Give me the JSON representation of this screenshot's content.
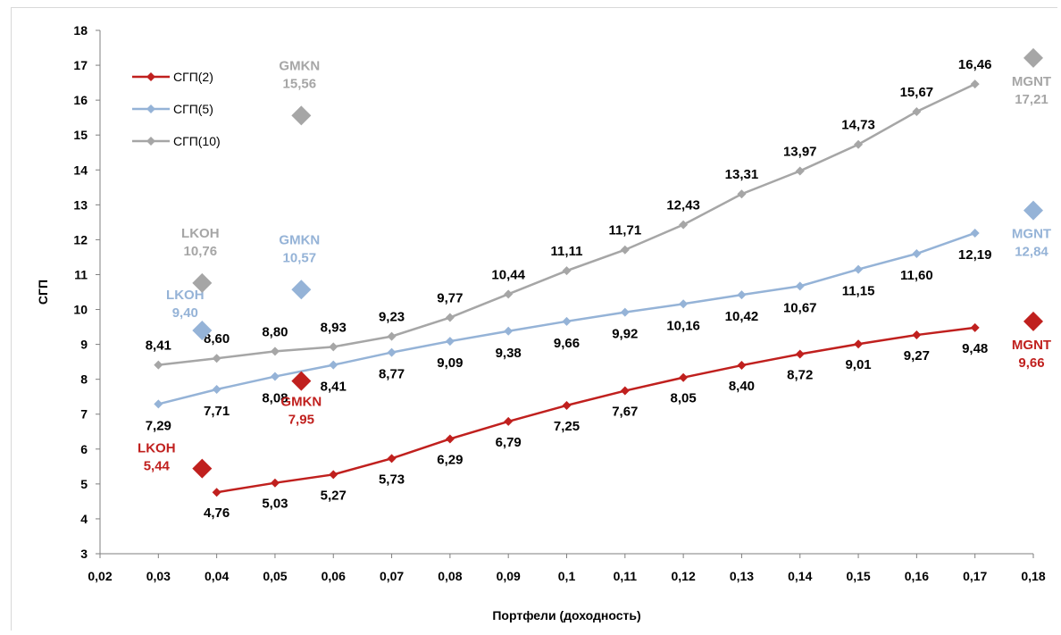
{
  "chart_data": {
    "type": "line",
    "title": "",
    "xlabel": "Портфели (доходность)",
    "ylabel": "СГП",
    "xlim": [
      0.02,
      0.18
    ],
    "ylim": [
      3,
      18
    ],
    "x_ticks": [
      "0,02",
      "0,03",
      "0,04",
      "0,05",
      "0,06",
      "0,07",
      "0,08",
      "0,09",
      "0,1",
      "0,11",
      "0,12",
      "0,13",
      "0,14",
      "0,15",
      "0,16",
      "0,17",
      "0,18"
    ],
    "y_ticks": [
      "3",
      "4",
      "5",
      "6",
      "7",
      "8",
      "9",
      "10",
      "11",
      "12",
      "13",
      "14",
      "15",
      "16",
      "17",
      "18"
    ],
    "grid": false,
    "legend_position": "top-left",
    "series": [
      {
        "name": "СГП(2)",
        "color": "#c0201e",
        "x": [
          0.04,
          0.05,
          0.06,
          0.07,
          0.08,
          0.09,
          0.1,
          0.11,
          0.12,
          0.13,
          0.14,
          0.15,
          0.16,
          0.17
        ],
        "values": [
          4.76,
          5.03,
          5.27,
          5.73,
          6.29,
          6.79,
          7.25,
          7.67,
          8.05,
          8.4,
          8.72,
          9.01,
          9.27,
          9.48
        ],
        "labels": [
          "4,76",
          "5,03",
          "5,27",
          "5,73",
          "6,29",
          "6,79",
          "7,25",
          "7,67",
          "8,05",
          "8,40",
          "8,72",
          "9,01",
          "9,27",
          "9,48"
        ]
      },
      {
        "name": "СГП(5)",
        "color": "#95b3d7",
        "x": [
          0.03,
          0.04,
          0.05,
          0.06,
          0.07,
          0.08,
          0.09,
          0.1,
          0.11,
          0.12,
          0.13,
          0.14,
          0.15,
          0.16,
          0.17
        ],
        "values": [
          7.29,
          7.71,
          8.08,
          8.41,
          8.77,
          9.09,
          9.38,
          9.66,
          9.92,
          10.16,
          10.42,
          10.67,
          11.15,
          11.6,
          12.19
        ],
        "labels": [
          "7,29",
          "7,71",
          "8,08",
          "8,41",
          "8,77",
          "9,09",
          "9,38",
          "9,66",
          "9,92",
          "10,16",
          "10,42",
          "10,67",
          "11,15",
          "11,60",
          "12,19"
        ]
      },
      {
        "name": "СГП(10)",
        "color": "#a6a6a6",
        "x": [
          0.03,
          0.04,
          0.05,
          0.06,
          0.07,
          0.08,
          0.09,
          0.1,
          0.11,
          0.12,
          0.13,
          0.14,
          0.15,
          0.16,
          0.17
        ],
        "values": [
          8.41,
          8.6,
          8.8,
          8.93,
          9.23,
          9.77,
          10.44,
          11.11,
          11.71,
          12.43,
          13.31,
          13.97,
          14.73,
          15.67,
          16.46
        ],
        "labels": [
          "8,41",
          "8,60",
          "8,80",
          "8,93",
          "9,23",
          "9,77",
          "10,44",
          "11,11",
          "11,71",
          "12,43",
          "13,31",
          "13,97",
          "14,73",
          "15,67",
          "16,46"
        ]
      }
    ],
    "annotations": [
      {
        "ticker": "LKOH",
        "value": "5,44",
        "x": 0.0375,
        "y": 5.44,
        "color": "#c0201e"
      },
      {
        "ticker": "GMKN",
        "value": "7,95",
        "x": 0.0545,
        "y": 7.95,
        "color": "#c0201e"
      },
      {
        "ticker": "MGNT",
        "value": "9,66",
        "x": 0.18,
        "y": 9.66,
        "color": "#c0201e"
      },
      {
        "ticker": "LKOH",
        "value": "9,40",
        "x": 0.0375,
        "y": 9.4,
        "color": "#95b3d7"
      },
      {
        "ticker": "GMKN",
        "value": "10,57",
        "x": 0.0545,
        "y": 10.57,
        "color": "#95b3d7"
      },
      {
        "ticker": "MGNT",
        "value": "12,84",
        "x": 0.18,
        "y": 12.84,
        "color": "#95b3d7"
      },
      {
        "ticker": "LKOH",
        "value": "10,76",
        "x": 0.0375,
        "y": 10.76,
        "color": "#a6a6a6"
      },
      {
        "ticker": "GMKN",
        "value": "15,56",
        "x": 0.0545,
        "y": 15.56,
        "color": "#a6a6a6"
      },
      {
        "ticker": "MGNT",
        "value": "17,21",
        "x": 0.18,
        "y": 17.21,
        "color": "#a6a6a6"
      }
    ]
  }
}
